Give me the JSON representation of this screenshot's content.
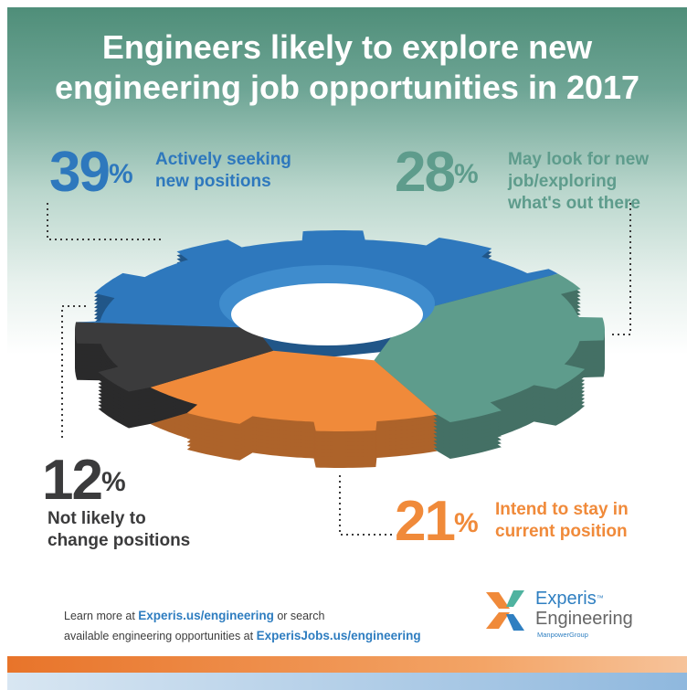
{
  "title": {
    "line1": "Engineers likely to explore new",
    "line2": "engineering job opportunities in 2017"
  },
  "chart_data": {
    "type": "pie",
    "title": "Engineers likely to explore new engineering job opportunities in 2017",
    "series": [
      {
        "name": "Actively seeking new positions",
        "value": 39,
        "color": "#2e78bd"
      },
      {
        "name": "May look for new job/exploring what's out there",
        "value": 28,
        "color": "#5e9c8c"
      },
      {
        "name": "Intend to stay in current position",
        "value": 21,
        "color": "#f08a3a"
      },
      {
        "name": "Not likely to change positions",
        "value": 12,
        "color": "#3b3b3c"
      }
    ]
  },
  "callouts": {
    "c39": {
      "pct": "39",
      "sym": "%",
      "line1": "Actively seeking",
      "line2": "new positions"
    },
    "c28": {
      "pct": "28",
      "sym": "%",
      "line1": "May look for new",
      "line2": "job/exploring",
      "line3": "what's out there"
    },
    "c12": {
      "pct": "12",
      "sym": "%",
      "line1": "Not likely to",
      "line2": "change positions"
    },
    "c21": {
      "pct": "21",
      "sym": "%",
      "line1": "Intend to stay in",
      "line2": "current position"
    }
  },
  "footer": {
    "learn_prefix": "Learn more at ",
    "learn_link": "Experis.us/engineering",
    "learn_suffix": " or search",
    "avail_prefix": "available engineering opportunities at ",
    "avail_link": "ExperisJobs.us/engineering"
  },
  "logo": {
    "name": "Experis",
    "tm": "™",
    "sub": "Engineering",
    "group": "ManpowerGroup"
  }
}
